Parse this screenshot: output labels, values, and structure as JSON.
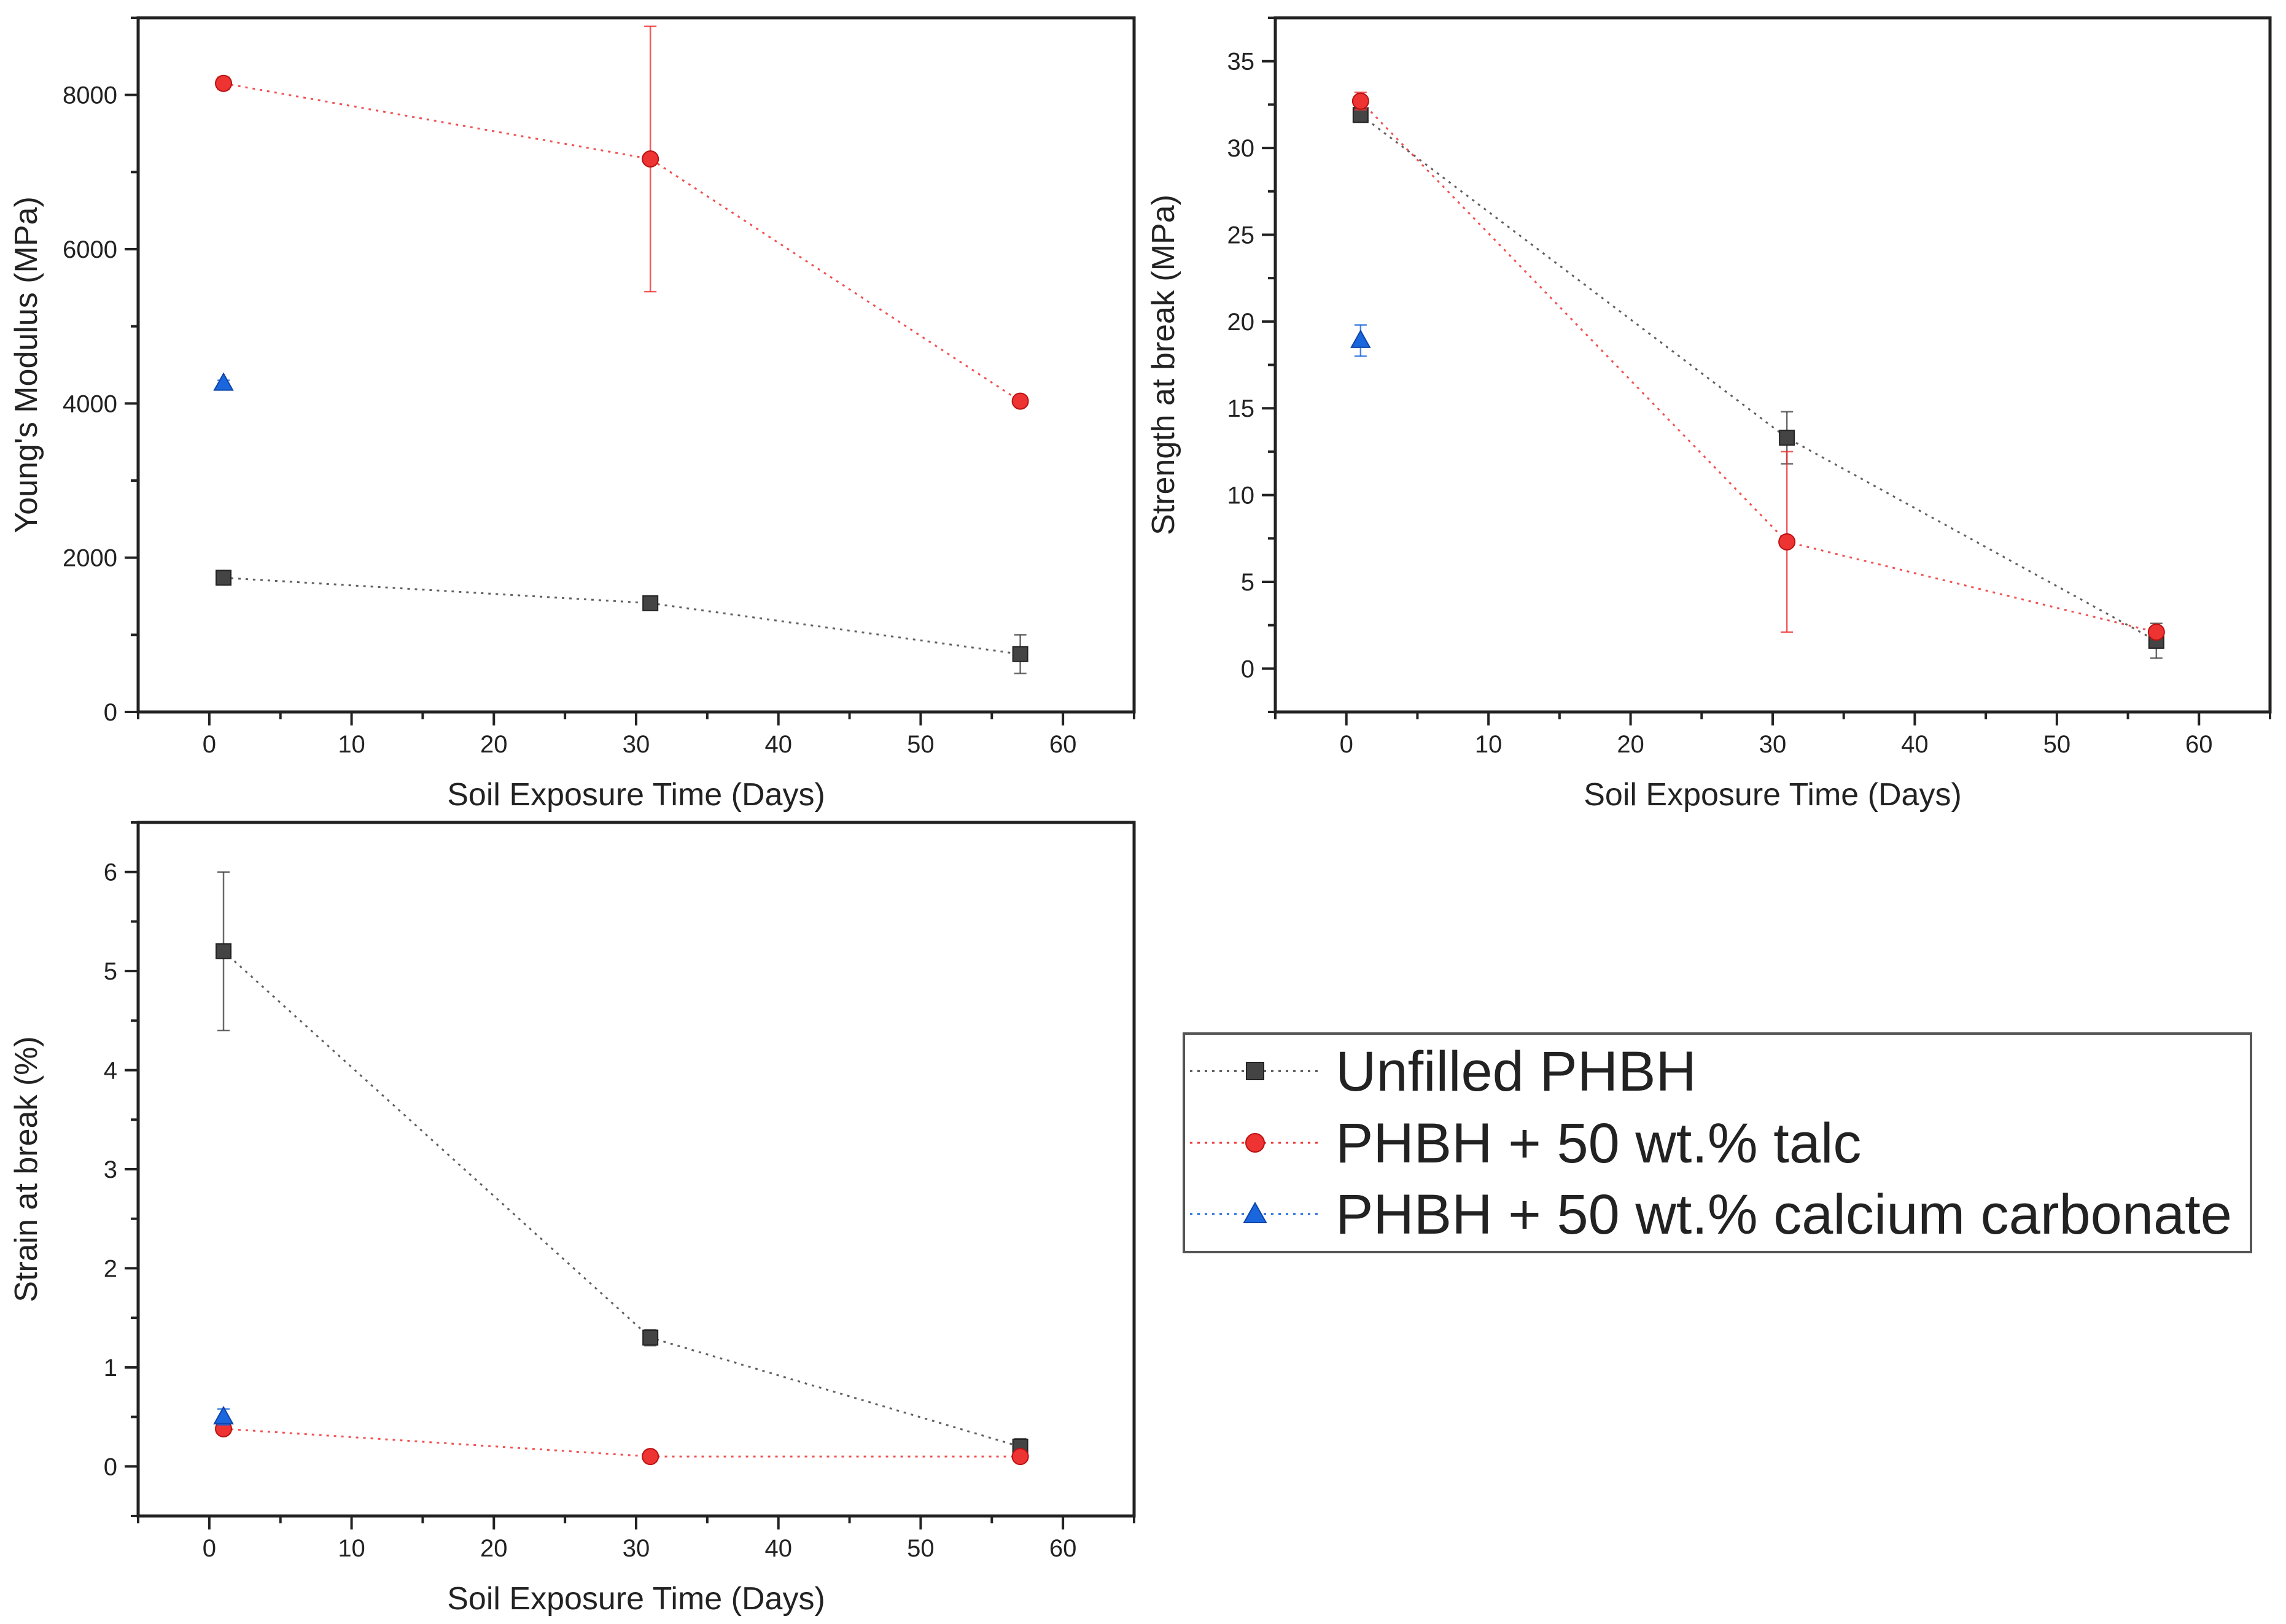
{
  "chart_data": [
    {
      "type": "scatter",
      "title": "",
      "xlabel": "Soil Exposure Time (Days)",
      "ylabel": "Young's Modulus (MPa)",
      "xlim": [
        -5,
        65
      ],
      "ylim": [
        0,
        9000
      ],
      "xticks": [
        0,
        10,
        20,
        30,
        40,
        50,
        60
      ],
      "yticks": [
        0,
        2000,
        4000,
        6000,
        8000
      ],
      "series": [
        {
          "name": "Unfilled PHBH",
          "color": "#444444",
          "marker": "square",
          "points": [
            {
              "x": 1,
              "y": 1740,
              "err": 40
            },
            {
              "x": 31,
              "y": 1410,
              "err": 40
            },
            {
              "x": 57,
              "y": 750,
              "err": 250
            }
          ]
        },
        {
          "name": "PHBH + 50 wt.% talc",
          "color": "#ee3333",
          "marker": "circle",
          "points": [
            {
              "x": 1,
              "y": 8150,
              "err": 80
            },
            {
              "x": 31,
              "y": 7170,
              "err": 1720
            },
            {
              "x": 57,
              "y": 4030,
              "err": 50
            }
          ]
        },
        {
          "name": "PHBH + 50 wt.% calcium carbonate",
          "color": "#1a66dd",
          "marker": "triangle",
          "points": [
            {
              "x": 1,
              "y": 4260,
              "err": 40
            }
          ]
        }
      ]
    },
    {
      "type": "scatter",
      "title": "",
      "xlabel": "Soil Exposure Time (Days)",
      "ylabel": "Strength at break (MPa)",
      "xlim": [
        -5,
        65
      ],
      "ylim": [
        -2.5,
        37.5
      ],
      "xticks": [
        0,
        10,
        20,
        30,
        40,
        50,
        60
      ],
      "yticks": [
        0,
        5,
        10,
        15,
        20,
        25,
        30,
        35
      ],
      "series": [
        {
          "name": "Unfilled PHBH",
          "color": "#444444",
          "marker": "square",
          "points": [
            {
              "x": 1,
              "y": 31.9,
              "err": 0.4
            },
            {
              "x": 31,
              "y": 13.3,
              "err": 1.5
            },
            {
              "x": 57,
              "y": 1.6,
              "err": 1.0
            }
          ]
        },
        {
          "name": "PHBH + 50 wt.% talc",
          "color": "#ee3333",
          "marker": "circle",
          "points": [
            {
              "x": 1,
              "y": 32.7,
              "err": 0.5
            },
            {
              "x": 31,
              "y": 7.3,
              "err": 5.2
            },
            {
              "x": 57,
              "y": 2.1,
              "err": 0.3
            }
          ]
        },
        {
          "name": "PHBH + 50 wt.% calcium carbonate",
          "color": "#1a66dd",
          "marker": "triangle",
          "points": [
            {
              "x": 1,
              "y": 18.9,
              "err": 0.9
            }
          ]
        }
      ]
    },
    {
      "type": "scatter",
      "title": "",
      "xlabel": "Soil Exposure Time (Days)",
      "ylabel": "Strain at break (%)",
      "xlim": [
        -5,
        65
      ],
      "ylim": [
        -0.5,
        6.5
      ],
      "xticks": [
        0,
        10,
        20,
        30,
        40,
        50,
        60
      ],
      "yticks": [
        0,
        1,
        2,
        3,
        4,
        5,
        6
      ],
      "series": [
        {
          "name": "Unfilled PHBH",
          "color": "#444444",
          "marker": "square",
          "points": [
            {
              "x": 1,
              "y": 5.2,
              "err": 0.8
            },
            {
              "x": 31,
              "y": 1.3,
              "err": 0.08
            },
            {
              "x": 57,
              "y": 0.2,
              "err": 0.08
            }
          ]
        },
        {
          "name": "PHBH + 50 wt.% talc",
          "color": "#ee3333",
          "marker": "circle",
          "points": [
            {
              "x": 1,
              "y": 0.38,
              "err": 0.05
            },
            {
              "x": 31,
              "y": 0.1,
              "err": 0.05
            },
            {
              "x": 57,
              "y": 0.1,
              "err": 0.03
            }
          ]
        },
        {
          "name": "PHBH + 50 wt.% calcium carbonate",
          "color": "#1a66dd",
          "marker": "triangle",
          "points": [
            {
              "x": 1,
              "y": 0.5,
              "err": 0.08
            }
          ]
        }
      ]
    }
  ],
  "legend": {
    "position": "lower-right",
    "entries": [
      {
        "label": "Unfilled PHBH",
        "color": "#444444",
        "marker": "square"
      },
      {
        "label": "PHBH + 50 wt.% talc",
        "color": "#ee3333",
        "marker": "circle"
      },
      {
        "label": "PHBH + 50 wt.% calcium carbonate",
        "color": "#1a66dd",
        "marker": "triangle"
      }
    ]
  }
}
